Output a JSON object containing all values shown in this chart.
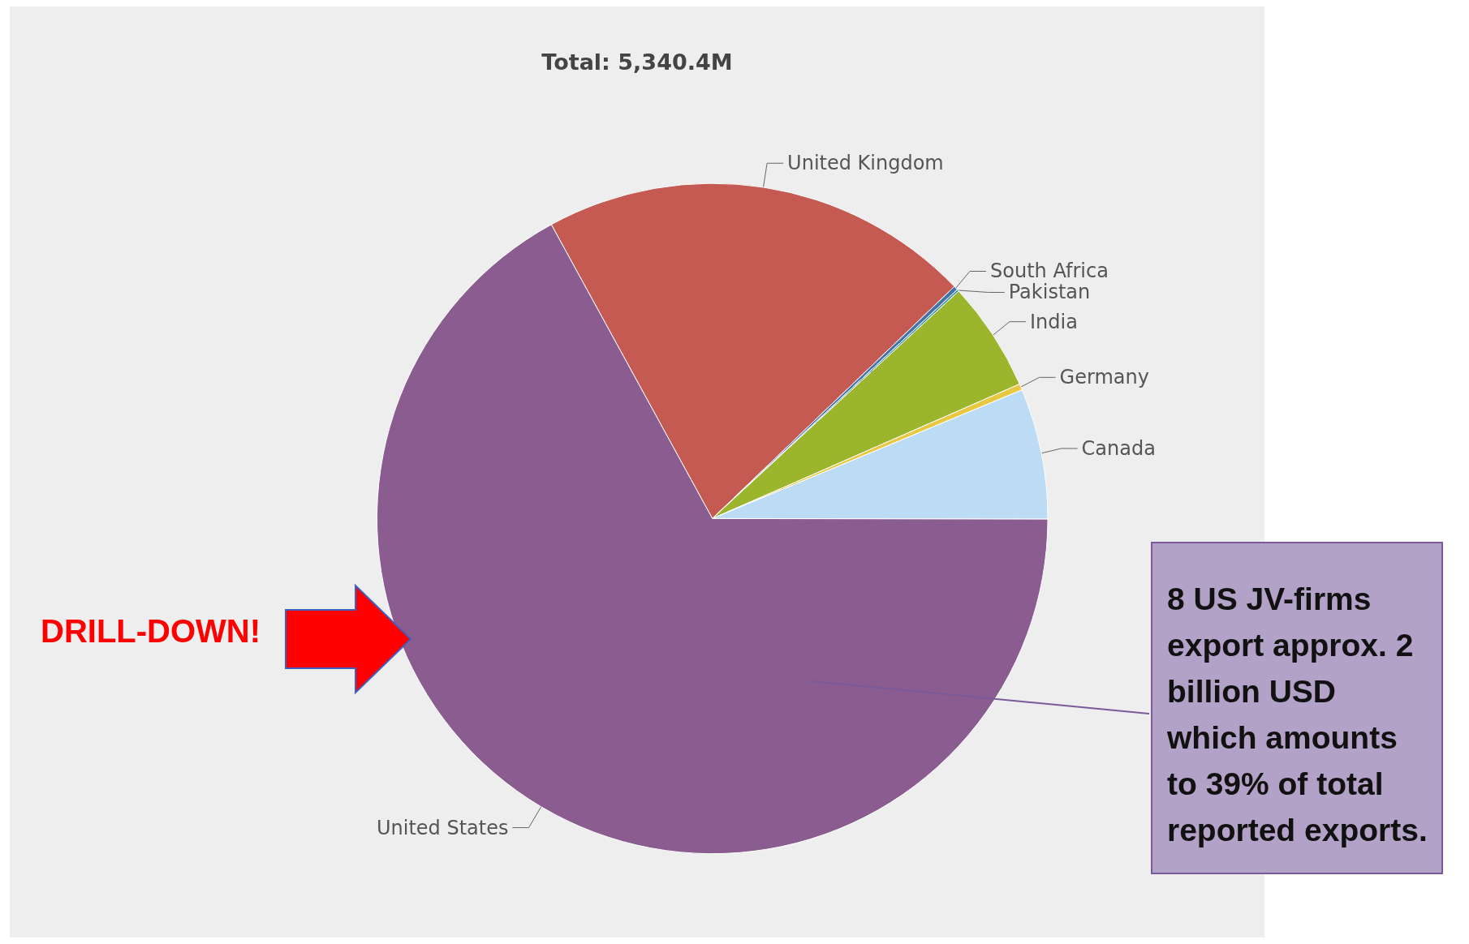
{
  "chart_data": {
    "type": "pie",
    "title": "Total: 5,340.4M",
    "categories": [
      "United Kingdom",
      "South Africa",
      "Pakistan",
      "India",
      "Germany",
      "Canada",
      "United States"
    ],
    "values": [
      20.8,
      0.2,
      0.1,
      5.3,
      0.3,
      6.3,
      67.0
    ],
    "colors": [
      "#c45a52",
      "#4572a7",
      "#3d96ae",
      "#9bb52d",
      "#e8c840",
      "#bcdcf5",
      "#8a5c90"
    ],
    "annotations": [
      "DRILL-DOWN!",
      "8 US JV-firms export approx. 2 billion USD which amounts to 39% of total reported exports."
    ]
  }
}
